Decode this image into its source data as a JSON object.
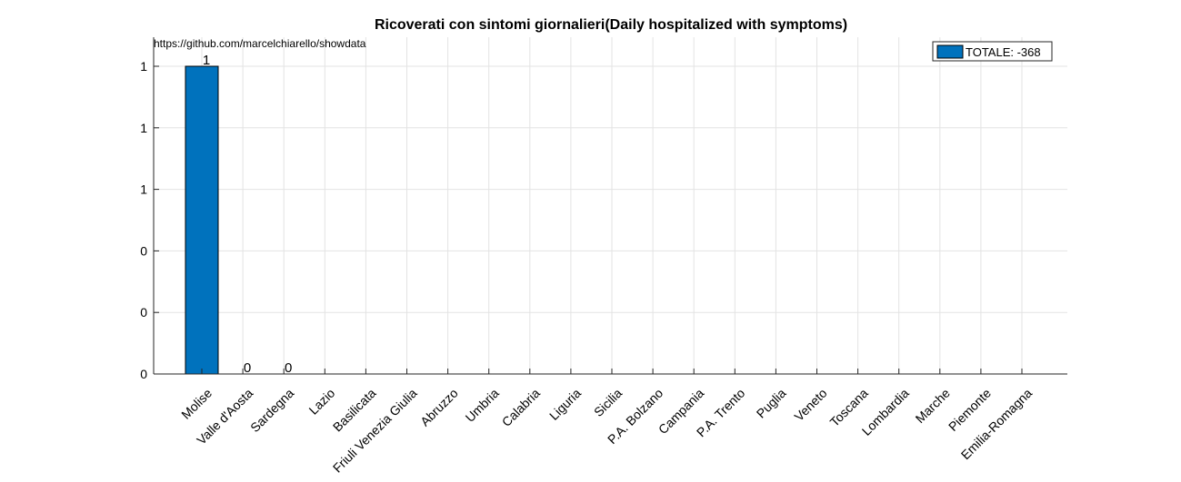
{
  "chart_data": {
    "type": "bar",
    "title": "Ricoverati con sintomi giornalieri(Daily hospitalized with symptoms)",
    "annotation": "https://github.com/marcelchiarello/showdata",
    "categories": [
      "Molise",
      "Valle d'Aosta",
      "Sardegna",
      "Lazio",
      "Basilicata",
      "Friuli Venezia Giulia",
      "Abruzzo",
      "Umbria",
      "Calabria",
      "Liguria",
      "Sicilia",
      "P.A. Bolzano",
      "Campania",
      "P.A. Trento",
      "Puglia",
      "Veneto",
      "Toscana",
      "Lombardia",
      "Marche",
      "Piemonte",
      "Emilia-Romagna"
    ],
    "values": [
      1,
      0,
      0,
      null,
      null,
      null,
      null,
      null,
      null,
      null,
      null,
      null,
      null,
      null,
      null,
      null,
      null,
      null,
      null,
      null,
      null
    ],
    "data_labels": [
      "1",
      "0",
      "0",
      "",
      "",
      "",
      "",
      "",
      "",
      "",
      "",
      "",
      "",
      "",
      "",
      "",
      "",
      "",
      "",
      "",
      ""
    ],
    "ylim": [
      0,
      1
    ],
    "yticks": [
      0,
      0.2,
      0.4,
      0.6,
      0.8,
      1.0
    ],
    "ytick_labels": [
      "0",
      "0",
      "0",
      "1",
      "1",
      "1"
    ],
    "xlabel": "",
    "ylabel": "",
    "grid": true,
    "legend": {
      "position": "top-right",
      "entries": [
        {
          "label": "TOTALE: -368",
          "color": "#0072BD"
        }
      ]
    },
    "bar_color": "#0072BD"
  }
}
